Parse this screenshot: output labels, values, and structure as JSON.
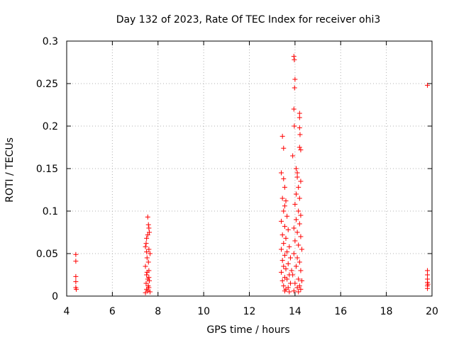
{
  "chart_data": {
    "type": "scatter",
    "title": "Day 132 of 2023, Rate Of TEC Index for receiver ohi3",
    "xlabel": "GPS time / hours",
    "ylabel": "ROTI / TECUs",
    "xlim": [
      4,
      20
    ],
    "ylim": [
      0,
      0.3
    ],
    "xticks": [
      4,
      6,
      8,
      10,
      12,
      14,
      16,
      18,
      20
    ],
    "yticks": [
      0,
      0.05,
      0.1,
      0.15,
      0.2,
      0.25,
      0.3
    ],
    "ytick_labels": [
      "0",
      "0.05",
      "0.1",
      "0.15",
      "0.2",
      "0.25",
      "0.3"
    ],
    "grid": true,
    "marker": "+",
    "marker_color": "#ff0000",
    "series": [
      {
        "points": [
          [
            4.4,
            0.049
          ],
          [
            4.4,
            0.041
          ],
          [
            4.4,
            0.023
          ],
          [
            4.4,
            0.017
          ],
          [
            4.4,
            0.01
          ],
          [
            4.42,
            0.008
          ],
          [
            7.45,
            0.058
          ],
          [
            7.5,
            0.052
          ],
          [
            7.55,
            0.093
          ],
          [
            7.58,
            0.084
          ],
          [
            7.6,
            0.08
          ],
          [
            7.62,
            0.075
          ],
          [
            7.55,
            0.072
          ],
          [
            7.5,
            0.068
          ],
          [
            7.48,
            0.062
          ],
          [
            7.6,
            0.055
          ],
          [
            7.65,
            0.05
          ],
          [
            7.52,
            0.045
          ],
          [
            7.58,
            0.04
          ],
          [
            7.45,
            0.035
          ],
          [
            7.6,
            0.03
          ],
          [
            7.5,
            0.025
          ],
          [
            7.55,
            0.02
          ],
          [
            7.62,
            0.018
          ],
          [
            7.48,
            0.015
          ],
          [
            7.57,
            0.012
          ],
          [
            7.6,
            0.01
          ],
          [
            7.5,
            0.008
          ],
          [
            7.55,
            0.006
          ],
          [
            7.65,
            0.005
          ],
          [
            7.45,
            0.004
          ],
          [
            7.6,
            0.022
          ],
          [
            7.52,
            0.028
          ],
          [
            13.45,
            0.188
          ],
          [
            13.5,
            0.174
          ],
          [
            13.4,
            0.145
          ],
          [
            13.5,
            0.138
          ],
          [
            13.55,
            0.128
          ],
          [
            13.45,
            0.115
          ],
          [
            13.6,
            0.112
          ],
          [
            13.55,
            0.106
          ],
          [
            13.5,
            0.1
          ],
          [
            13.65,
            0.094
          ],
          [
            13.4,
            0.088
          ],
          [
            13.55,
            0.082
          ],
          [
            13.7,
            0.078
          ],
          [
            13.45,
            0.072
          ],
          [
            13.6,
            0.068
          ],
          [
            13.5,
            0.062
          ],
          [
            13.75,
            0.058
          ],
          [
            13.4,
            0.055
          ],
          [
            13.65,
            0.052
          ],
          [
            13.55,
            0.048
          ],
          [
            13.8,
            0.045
          ],
          [
            13.45,
            0.042
          ],
          [
            13.7,
            0.038
          ],
          [
            13.5,
            0.035
          ],
          [
            13.6,
            0.032
          ],
          [
            13.85,
            0.03
          ],
          [
            13.4,
            0.028
          ],
          [
            13.75,
            0.025
          ],
          [
            13.55,
            0.022
          ],
          [
            13.65,
            0.02
          ],
          [
            13.45,
            0.018
          ],
          [
            13.8,
            0.015
          ],
          [
            13.5,
            0.012
          ],
          [
            13.7,
            0.01
          ],
          [
            13.6,
            0.008
          ],
          [
            13.55,
            0.006
          ],
          [
            13.75,
            0.005
          ],
          [
            13.9,
            0.165
          ],
          [
            13.95,
            0.282
          ],
          [
            13.97,
            0.278
          ],
          [
            14.0,
            0.255
          ],
          [
            13.98,
            0.245
          ],
          [
            13.95,
            0.22
          ],
          [
            13.97,
            0.2
          ],
          [
            14.05,
            0.15
          ],
          [
            14.1,
            0.145
          ],
          [
            14.2,
            0.215
          ],
          [
            14.2,
            0.21
          ],
          [
            14.2,
            0.198
          ],
          [
            14.22,
            0.19
          ],
          [
            14.2,
            0.175
          ],
          [
            14.25,
            0.172
          ],
          [
            14.1,
            0.14
          ],
          [
            14.25,
            0.135
          ],
          [
            14.15,
            0.128
          ],
          [
            14.05,
            0.12
          ],
          [
            14.2,
            0.115
          ],
          [
            14.0,
            0.108
          ],
          [
            14.15,
            0.1
          ],
          [
            14.25,
            0.095
          ],
          [
            14.05,
            0.09
          ],
          [
            14.2,
            0.085
          ],
          [
            13.95,
            0.08
          ],
          [
            14.1,
            0.075
          ],
          [
            14.25,
            0.07
          ],
          [
            14.0,
            0.065
          ],
          [
            14.15,
            0.06
          ],
          [
            14.3,
            0.055
          ],
          [
            13.95,
            0.05
          ],
          [
            14.1,
            0.045
          ],
          [
            14.2,
            0.04
          ],
          [
            14.05,
            0.035
          ],
          [
            14.25,
            0.03
          ],
          [
            13.9,
            0.025
          ],
          [
            14.15,
            0.02
          ],
          [
            14.3,
            0.018
          ],
          [
            14.0,
            0.015
          ],
          [
            14.2,
            0.012
          ],
          [
            14.1,
            0.01
          ],
          [
            14.25,
            0.008
          ],
          [
            13.95,
            0.006
          ],
          [
            14.15,
            0.005
          ],
          [
            19.8,
            0.248
          ],
          [
            19.8,
            0.03
          ],
          [
            19.8,
            0.025
          ],
          [
            19.8,
            0.02
          ],
          [
            19.8,
            0.016
          ],
          [
            19.82,
            0.014
          ],
          [
            19.8,
            0.012
          ],
          [
            19.8,
            0.009
          ]
        ]
      }
    ]
  }
}
